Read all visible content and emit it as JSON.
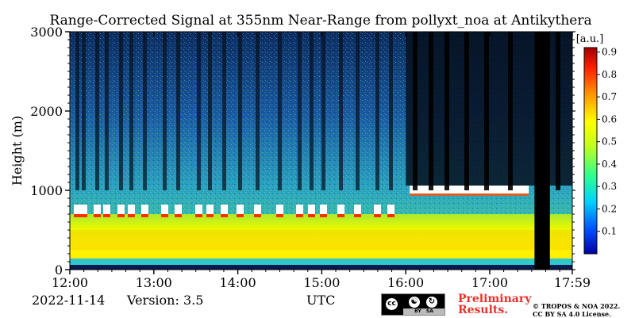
{
  "chart_data": {
    "type": "heatmap",
    "title": "Range-Corrected Signal at 355nm Near-Range from pollyxt_noa at Antikythera",
    "xlabel": "UTC",
    "ylabel": "Height (m)",
    "x_ticks": [
      "12:00",
      "13:00",
      "14:00",
      "15:00",
      "16:00",
      "17:00",
      "17:59"
    ],
    "x_range": [
      "12:00",
      "17:59"
    ],
    "y_ticks": [
      0,
      1000,
      2000,
      3000
    ],
    "ylim": [
      0,
      3000
    ],
    "colorbar": {
      "label": "[a.u.]",
      "range": [
        0,
        0.92
      ],
      "ticks": [
        0.1,
        0.2,
        0.3,
        0.4,
        0.5,
        0.6,
        0.7,
        0.8,
        0.9
      ],
      "colors": [
        "#0000a0",
        "#0050ff",
        "#00d0ff",
        "#30ff90",
        "#c0ff20",
        "#ffff00",
        "#ff9000",
        "#ff2000",
        "#a00000"
      ]
    },
    "layers": {
      "cloud_base_height_m": {
        "12:00-16:00": 700,
        "16:00-17:59": 1000
      },
      "boundary_layer_top_m": 600,
      "data_gap_utc": [
        "17:32",
        "17:43"
      ]
    }
  },
  "footer": {
    "date": "2022-11-14",
    "version": "Version: 3.5",
    "utc_label": "UTC",
    "preliminary_line1": "Preliminary",
    "preliminary_line2": "Results.",
    "copyright_line1": "© TROPOS & NOA 2022.",
    "copyright_line2": "CC BY SA 4.0 License.",
    "license_badge_text": "BY   SA"
  }
}
